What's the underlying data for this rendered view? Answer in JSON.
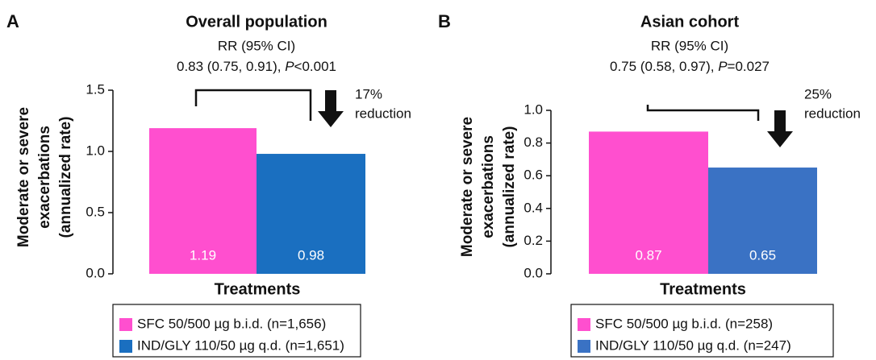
{
  "chart_data": [
    {
      "type": "bar",
      "panel_label": "A",
      "title": "Overall population",
      "rr_label": "RR (95% CI)",
      "rr_value": [
        "0.83 (0.75, 0.91), ",
        "P",
        "<0.001"
      ],
      "reduction": [
        "17%",
        "reduction"
      ],
      "ylabel": [
        "Moderate or severe",
        "exacerbations",
        "(annualized rate)"
      ],
      "xlabel": "Treatments",
      "series": [
        {
          "name": "SFC 50/500 µg b.i.d. (n=1,656)",
          "color": "#ff4fcf",
          "values": [
            1.19
          ]
        },
        {
          "name": "IND/GLY 110/50 µg q.d. (n=1,651)",
          "color": "#1a6fc0",
          "values": [
            0.98
          ]
        }
      ],
      "ylim": [
        0,
        1.5
      ],
      "yticks": [
        {
          "value": 0,
          "label": "0.0"
        },
        0.5,
        {
          "value": 1,
          "label": "1.0"
        },
        1.5
      ]
    },
    {
      "type": "bar",
      "panel_label": "B",
      "title": "Asian cohort",
      "rr_label": "RR (95% CI)",
      "rr_value": [
        "0.75 (0.58, 0.97), ",
        "P",
        "=0.027"
      ],
      "reduction": [
        "25%",
        "reduction"
      ],
      "ylabel": [
        "Moderate or severe",
        "exacerbations",
        "(annualized rate)"
      ],
      "xlabel": "Treatments",
      "series": [
        {
          "name": "SFC 50/500 µg b.i.d. (n=258)",
          "color": "#ff4fcf",
          "values": [
            0.87
          ]
        },
        {
          "name": "IND/GLY 110/50 µg q.d. (n=247)",
          "color": "#3a72c4",
          "values": [
            0.65
          ]
        }
      ],
      "ylim": [
        0,
        1.0
      ],
      "yticks": [
        {
          "value": 0,
          "label": "0.0"
        },
        0.2,
        0.4,
        0.6,
        0.8,
        {
          "value": 1,
          "label": "1.0"
        }
      ]
    }
  ]
}
